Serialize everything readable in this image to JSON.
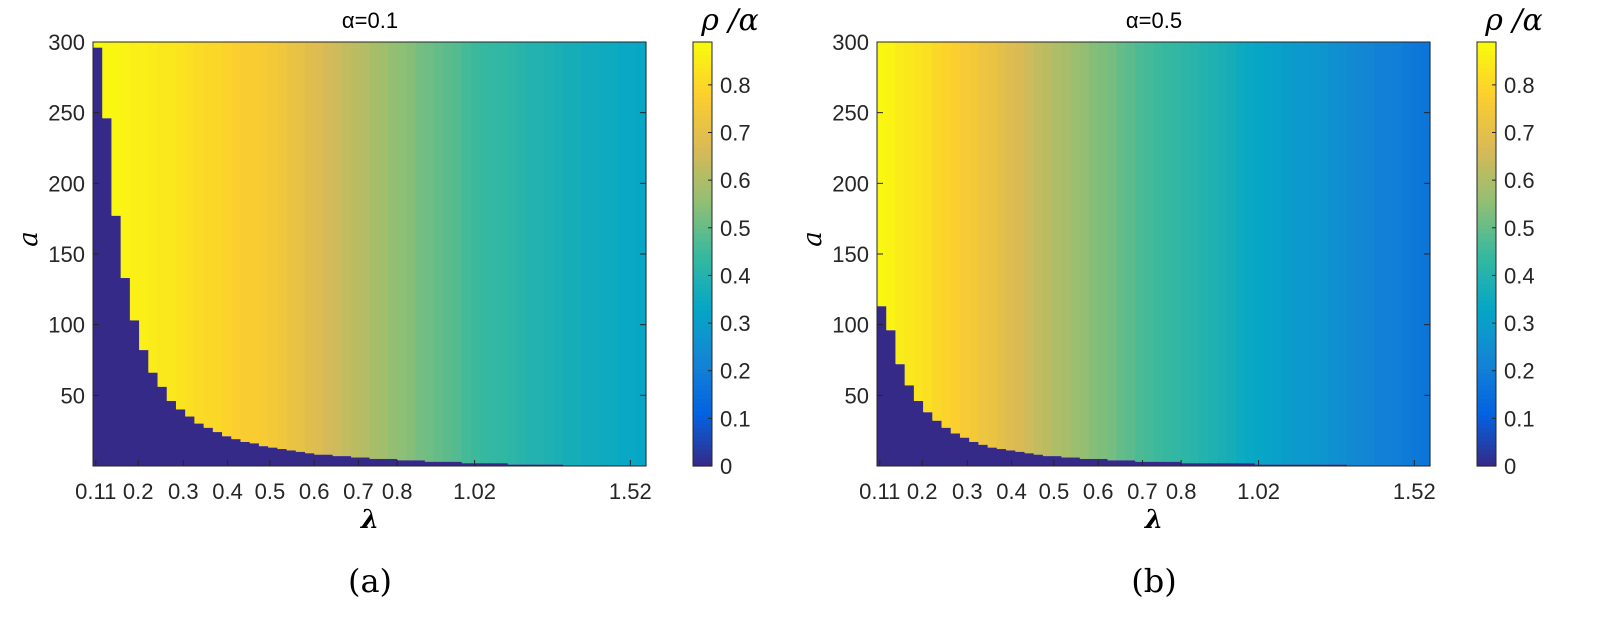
{
  "chart_data": [
    {
      "type": "heatmap",
      "title": "α=0.1",
      "colorbar_label": "ρ /α",
      "xlabel": "λ",
      "ylabel": "a",
      "caption": "(a)",
      "ylim": [
        0,
        300
      ],
      "yticks": [
        "50",
        "100",
        "150",
        "200",
        "250",
        "300"
      ],
      "x_columns": 60,
      "xticks": [
        {
          "label": "0.11",
          "col": 0.3
        },
        {
          "label": "0.2",
          "col": 4.9
        },
        {
          "label": "0.3",
          "col": 9.8
        },
        {
          "label": "0.4",
          "col": 14.6
        },
        {
          "label": "0.5",
          "col": 19.2
        },
        {
          "label": "0.6",
          "col": 24
        },
        {
          "label": "0.7",
          "col": 28.8
        },
        {
          "label": "0.8",
          "col": 33
        },
        {
          "label": "1.02",
          "col": 41.4
        },
        {
          "label": "1.52",
          "col": 58.3
        }
      ],
      "clim": [
        0,
        0.89
      ],
      "cticks": [
        "0",
        "0.1",
        "0.2",
        "0.3",
        "0.4",
        "0.5",
        "0.6",
        "0.7",
        "0.8"
      ],
      "values": [
        0.89,
        0.88,
        0.88,
        0.87,
        0.86,
        0.86,
        0.85,
        0.84,
        0.84,
        0.83,
        0.82,
        0.81,
        0.8,
        0.8,
        0.79,
        0.78,
        0.77,
        0.77,
        0.76,
        0.75,
        0.74,
        0.72,
        0.71,
        0.69,
        0.68,
        0.66,
        0.65,
        0.63,
        0.62,
        0.61,
        0.59,
        0.58,
        0.56,
        0.55,
        0.54,
        0.52,
        0.51,
        0.5,
        0.49,
        0.48,
        0.46,
        0.45,
        0.44,
        0.43,
        0.43,
        0.42,
        0.41,
        0.4,
        0.4,
        0.39,
        0.38,
        0.37,
        0.37,
        0.36,
        0.36,
        0.35,
        0.35,
        0.34,
        0.34,
        0.33
      ],
      "zero_below_a": [
        296,
        246,
        177,
        133,
        103,
        82,
        66,
        56,
        46,
        40,
        35,
        30,
        27,
        24,
        21,
        19,
        17,
        16,
        14,
        13,
        12,
        11,
        10,
        9,
        8,
        8,
        7,
        7,
        6,
        6,
        5,
        5,
        5,
        4,
        4,
        4,
        3,
        3,
        3,
        3,
        2,
        2,
        2,
        2,
        2,
        1,
        1,
        1,
        1,
        1,
        1,
        0,
        0,
        0,
        0,
        0,
        0,
        0,
        0,
        0
      ]
    },
    {
      "type": "heatmap",
      "title": "α=0.5",
      "colorbar_label": "ρ /α",
      "xlabel": "λ",
      "ylabel": "a",
      "caption": "(b)",
      "ylim": [
        0,
        300
      ],
      "yticks": [
        "50",
        "100",
        "150",
        "200",
        "250",
        "300"
      ],
      "x_columns": 60,
      "xticks": [
        {
          "label": "0.11",
          "col": 0.3
        },
        {
          "label": "0.2",
          "col": 4.9
        },
        {
          "label": "0.3",
          "col": 9.8
        },
        {
          "label": "0.4",
          "col": 14.6
        },
        {
          "label": "0.5",
          "col": 19.2
        },
        {
          "label": "0.6",
          "col": 24
        },
        {
          "label": "0.7",
          "col": 28.8
        },
        {
          "label": "0.8",
          "col": 33
        },
        {
          "label": "1.02",
          "col": 41.4
        },
        {
          "label": "1.52",
          "col": 58.3
        }
      ],
      "clim": [
        0,
        0.89
      ],
      "cticks": [
        "0",
        "0.1",
        "0.2",
        "0.3",
        "0.4",
        "0.5",
        "0.6",
        "0.7",
        "0.8"
      ],
      "values": [
        0.88,
        0.87,
        0.85,
        0.84,
        0.83,
        0.82,
        0.8,
        0.79,
        0.78,
        0.76,
        0.75,
        0.73,
        0.72,
        0.7,
        0.68,
        0.67,
        0.65,
        0.63,
        0.62,
        0.6,
        0.59,
        0.57,
        0.56,
        0.54,
        0.53,
        0.52,
        0.5,
        0.49,
        0.47,
        0.46,
        0.45,
        0.44,
        0.43,
        0.42,
        0.41,
        0.4,
        0.39,
        0.38,
        0.37,
        0.35,
        0.34,
        0.33,
        0.32,
        0.31,
        0.3,
        0.29,
        0.29,
        0.28,
        0.27,
        0.26,
        0.25,
        0.24,
        0.23,
        0.22,
        0.21,
        0.21,
        0.2,
        0.19,
        0.18,
        0.17
      ],
      "zero_below_a": [
        113,
        96,
        72,
        57,
        46,
        38,
        32,
        27,
        23,
        20,
        17,
        15,
        13,
        12,
        11,
        10,
        9,
        8,
        7,
        7,
        6,
        6,
        5,
        5,
        5,
        4,
        4,
        4,
        3,
        3,
        3,
        3,
        3,
        2,
        2,
        2,
        2,
        2,
        2,
        2,
        2,
        1,
        1,
        1,
        1,
        1,
        1,
        1,
        1,
        1,
        1,
        0,
        0,
        0,
        0,
        0,
        0,
        0,
        0,
        0
      ]
    }
  ]
}
